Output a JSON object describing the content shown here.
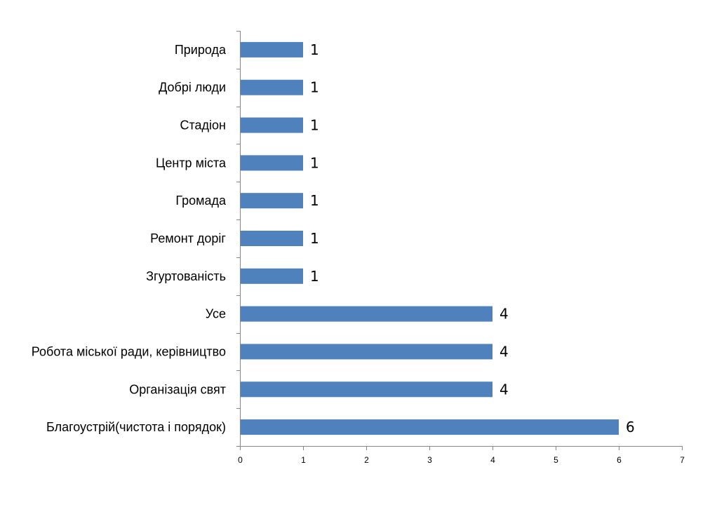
{
  "chart_data": {
    "type": "bar",
    "orientation": "horizontal",
    "categories": [
      "Природа",
      "Добрі люди",
      "Стадіон",
      "Центр міста",
      "Громада",
      "Ремонт доріг",
      "Згуртованість",
      "Усе",
      "Робота міської ради, керівництво",
      "Організація свят",
      "Благоустрій(чистота і порядок)"
    ],
    "values": [
      1,
      1,
      1,
      1,
      1,
      1,
      1,
      4,
      4,
      4,
      6
    ],
    "data_labels": [
      "1",
      "1",
      "1",
      "1",
      "1",
      "1",
      "1",
      "4",
      "4",
      "4",
      "6"
    ],
    "xlim": [
      0,
      7
    ],
    "x_ticks": [
      "0",
      "1",
      "2",
      "3",
      "4",
      "5",
      "6",
      "7"
    ],
    "bar_color": "#4F81BD",
    "grid": false,
    "legend": "none",
    "title": "",
    "xlabel": "",
    "ylabel": ""
  }
}
